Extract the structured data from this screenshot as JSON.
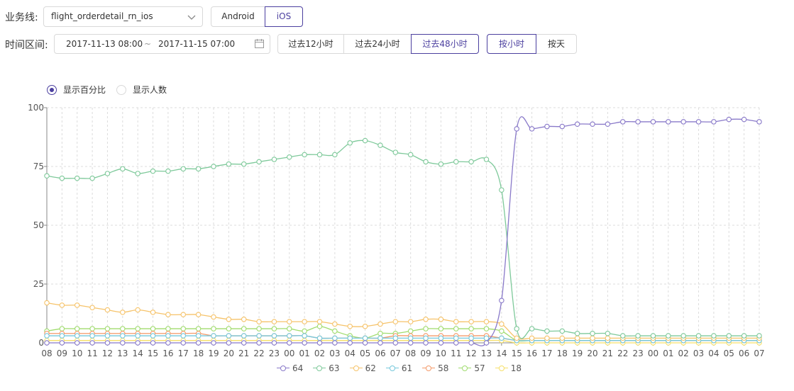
{
  "filters": {
    "business_label": "业务线:",
    "business_value": "flight_orderdetail_rn_ios",
    "platforms": [
      "Android",
      "iOS"
    ],
    "platform_active": "iOS",
    "time_label": "时间区间:",
    "start_time": "2017-11-13 08:00",
    "range_sep": "~",
    "end_time": "2017-11-15 07:00",
    "quick_ranges": [
      "过去12小时",
      "过去24小时",
      "过去48小时"
    ],
    "quick_active": "过去48小时",
    "granularity": [
      "按小时",
      "按天"
    ],
    "granularity_active": "按小时"
  },
  "display_mode": {
    "options": [
      "显示百分比",
      "显示人数"
    ],
    "selected": "显示百分比"
  },
  "chart_data": {
    "type": "line",
    "title": "",
    "xlabel": "",
    "ylabel": "",
    "ylim": [
      0,
      100
    ],
    "yticks": [
      0,
      25,
      50,
      75,
      100
    ],
    "grid": true,
    "legend_position": "bottom",
    "x": [
      "08",
      "09",
      "10",
      "11",
      "12",
      "13",
      "14",
      "15",
      "16",
      "17",
      "18",
      "19",
      "20",
      "21",
      "22",
      "23",
      "00",
      "01",
      "02",
      "03",
      "04",
      "05",
      "06",
      "07",
      "08",
      "09",
      "10",
      "11",
      "12",
      "13",
      "14",
      "15",
      "16",
      "17",
      "18",
      "19",
      "20",
      "21",
      "22",
      "23",
      "00",
      "01",
      "02",
      "03",
      "04",
      "05",
      "06",
      "07"
    ],
    "series": [
      {
        "name": "64",
        "color": "#8979c9",
        "values": [
          0,
          0,
          0,
          0,
          0,
          0,
          0,
          0,
          0,
          0,
          0,
          0,
          0,
          0,
          0,
          0,
          0,
          0,
          0,
          0,
          0,
          0,
          0,
          0,
          0,
          0,
          0,
          0,
          0,
          0,
          18,
          91,
          91,
          92,
          92,
          93,
          93,
          93,
          94,
          94,
          94,
          94,
          94,
          94,
          94,
          95,
          95,
          94
        ]
      },
      {
        "name": "63",
        "color": "#7ec99a",
        "values": [
          71,
          70,
          70,
          70,
          72,
          74,
          72,
          73,
          73,
          74,
          74,
          75,
          76,
          76,
          77,
          78,
          79,
          80,
          80,
          80,
          85,
          86,
          84,
          81,
          80,
          77,
          76,
          77,
          77,
          78,
          65,
          6,
          6,
          5,
          5,
          4,
          4,
          4,
          3,
          3,
          3,
          3,
          3,
          3,
          3,
          3,
          3,
          3
        ]
      },
      {
        "name": "62",
        "color": "#f6c36a",
        "values": [
          17,
          16,
          16,
          15,
          14,
          13,
          14,
          13,
          12,
          12,
          12,
          11,
          10,
          10,
          9,
          9,
          9,
          9,
          9,
          8,
          7,
          7,
          8,
          9,
          9,
          10,
          10,
          9,
          9,
          9,
          8,
          2,
          2,
          2,
          2,
          2,
          2,
          2,
          2,
          2,
          2,
          2,
          2,
          2,
          2,
          2,
          2,
          2
        ]
      },
      {
        "name": "61",
        "color": "#76c8dc",
        "values": [
          3,
          3,
          3,
          3,
          3,
          3,
          3,
          3,
          3,
          3,
          3,
          3,
          3,
          3,
          3,
          3,
          3,
          3,
          2,
          2,
          2,
          2,
          2,
          2,
          2,
          2,
          2,
          2,
          2,
          2,
          2,
          1,
          1,
          1,
          1,
          1,
          1,
          1,
          1,
          1,
          1,
          1,
          1,
          1,
          1,
          1,
          1,
          1
        ]
      },
      {
        "name": "58",
        "color": "#f49a6a",
        "values": [
          4,
          4,
          4,
          4,
          4,
          4,
          4,
          4,
          4,
          4,
          4,
          3,
          3,
          3,
          3,
          3,
          3,
          3,
          2,
          2,
          2,
          2,
          2,
          3,
          3,
          3,
          3,
          3,
          3,
          3,
          2,
          1,
          1,
          1,
          1,
          1,
          1,
          1,
          1,
          1,
          1,
          1,
          1,
          1,
          1,
          1,
          1,
          1
        ]
      },
      {
        "name": "57",
        "color": "#a0dc6e",
        "values": [
          5,
          6,
          6,
          6,
          6,
          6,
          6,
          6,
          6,
          6,
          6,
          6,
          6,
          6,
          6,
          6,
          6,
          5,
          7,
          5,
          3,
          2,
          4,
          4,
          5,
          6,
          6,
          6,
          6,
          6,
          5,
          1,
          1,
          1,
          1,
          1,
          1,
          1,
          1,
          1,
          1,
          1,
          1,
          1,
          1,
          1,
          1,
          1
        ]
      },
      {
        "name": "18",
        "color": "#f6e06a",
        "values": [
          1,
          1,
          1,
          1,
          1,
          1,
          1,
          1,
          1,
          1,
          1,
          1,
          1,
          1,
          1,
          1,
          1,
          1,
          1,
          1,
          1,
          1,
          1,
          1,
          1,
          1,
          1,
          1,
          1,
          1,
          1,
          0,
          0,
          0,
          0,
          0,
          0,
          0,
          0,
          0,
          0,
          0,
          0,
          0,
          0,
          0,
          0,
          0
        ]
      }
    ]
  }
}
